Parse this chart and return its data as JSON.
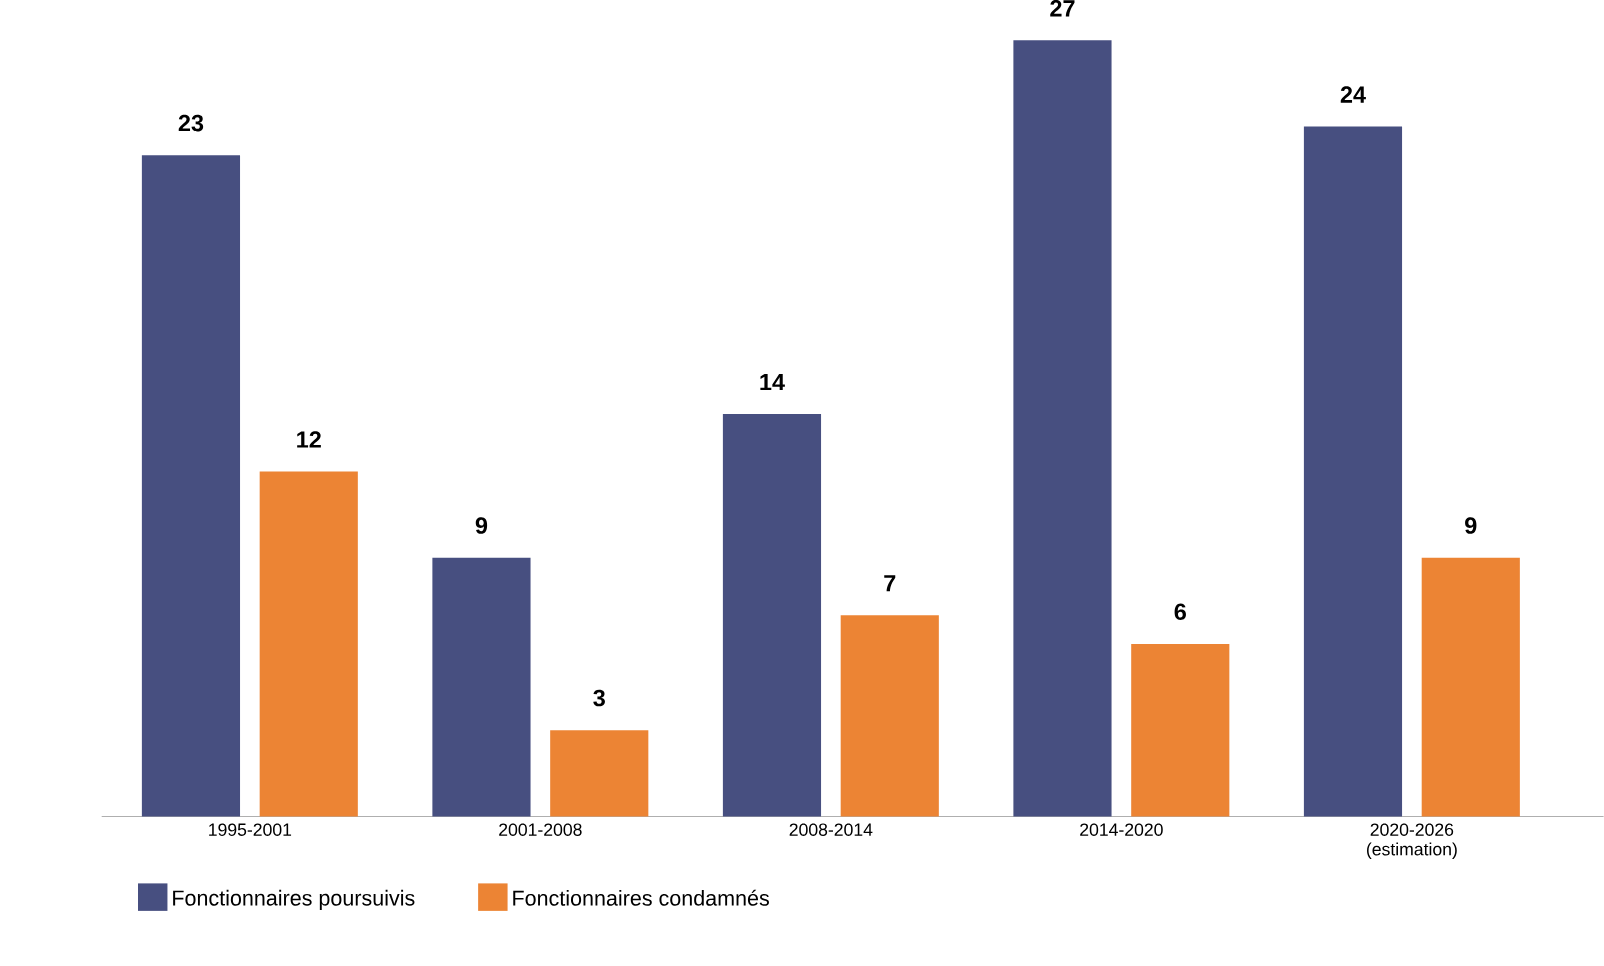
{
  "chart_data": {
    "type": "bar",
    "categories": [
      "1995-2001",
      "2001-2008",
      "2008-2014",
      "2014-2020",
      "2020-2026 (estimation)"
    ],
    "series": [
      {
        "name": "Fonctionnaires poursuivis",
        "color": "#474f80",
        "values": [
          23,
          9,
          14,
          27,
          24
        ]
      },
      {
        "name": "Fonctionnaires condamnés",
        "color": "#ec8434",
        "values": [
          12,
          3,
          7,
          6,
          9
        ]
      }
    ],
    "data_labels": true,
    "legend": "bottom left",
    "grid": false
  }
}
